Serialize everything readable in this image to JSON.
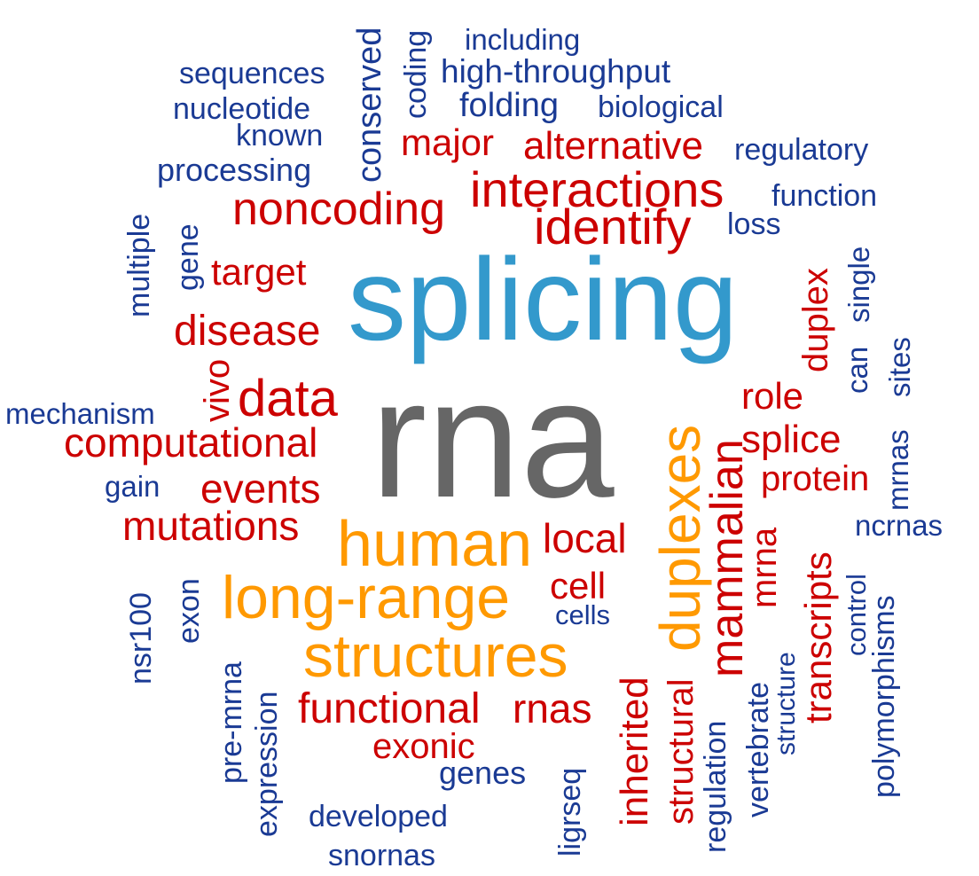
{
  "colors": {
    "gray": "#666666",
    "sky": "#3399cc",
    "orange": "#ff9900",
    "red": "#cc0000",
    "blue": "#1a3a94"
  },
  "words": [
    {
      "text": "rna",
      "color": "gray"
    },
    {
      "text": "splicing",
      "color": "sky"
    },
    {
      "text": "human",
      "color": "orange"
    },
    {
      "text": "long-range",
      "color": "orange"
    },
    {
      "text": "structures",
      "color": "orange"
    },
    {
      "text": "duplexes",
      "color": "orange"
    },
    {
      "text": "interactions",
      "color": "red"
    },
    {
      "text": "noncoding",
      "color": "red"
    },
    {
      "text": "identify",
      "color": "red"
    },
    {
      "text": "alternative",
      "color": "red"
    },
    {
      "text": "major",
      "color": "red"
    },
    {
      "text": "target",
      "color": "red"
    },
    {
      "text": "disease",
      "color": "red"
    },
    {
      "text": "data",
      "color": "red"
    },
    {
      "text": "vivo",
      "color": "red"
    },
    {
      "text": "computational",
      "color": "red"
    },
    {
      "text": "events",
      "color": "red"
    },
    {
      "text": "mutations",
      "color": "red"
    },
    {
      "text": "local",
      "color": "red"
    },
    {
      "text": "cell",
      "color": "red"
    },
    {
      "text": "functional",
      "color": "red"
    },
    {
      "text": "rnas",
      "color": "red"
    },
    {
      "text": "exonic",
      "color": "red"
    },
    {
      "text": "mammalian",
      "color": "red"
    },
    {
      "text": "role",
      "color": "red"
    },
    {
      "text": "splice",
      "color": "red"
    },
    {
      "text": "protein",
      "color": "red"
    },
    {
      "text": "duplex",
      "color": "red"
    },
    {
      "text": "mrna",
      "color": "red"
    },
    {
      "text": "transcripts",
      "color": "red"
    },
    {
      "text": "inherited",
      "color": "red"
    },
    {
      "text": "structural",
      "color": "red"
    },
    {
      "text": "including",
      "color": "blue"
    },
    {
      "text": "high-throughput",
      "color": "blue"
    },
    {
      "text": "folding",
      "color": "blue"
    },
    {
      "text": "biological",
      "color": "blue"
    },
    {
      "text": "sequences",
      "color": "blue"
    },
    {
      "text": "nucleotide",
      "color": "blue"
    },
    {
      "text": "known",
      "color": "blue"
    },
    {
      "text": "processing",
      "color": "blue"
    },
    {
      "text": "conserved",
      "color": "blue"
    },
    {
      "text": "coding",
      "color": "blue"
    },
    {
      "text": "regulatory",
      "color": "blue"
    },
    {
      "text": "function",
      "color": "blue"
    },
    {
      "text": "loss",
      "color": "blue"
    },
    {
      "text": "multiple",
      "color": "blue"
    },
    {
      "text": "gene",
      "color": "blue"
    },
    {
      "text": "mechanism",
      "color": "blue"
    },
    {
      "text": "gain",
      "color": "blue"
    },
    {
      "text": "single",
      "color": "blue"
    },
    {
      "text": "can",
      "color": "blue"
    },
    {
      "text": "sites",
      "color": "blue"
    },
    {
      "text": "mrnas",
      "color": "blue"
    },
    {
      "text": "ncrnas",
      "color": "blue"
    },
    {
      "text": "cells",
      "color": "blue"
    },
    {
      "text": "nsr100",
      "color": "blue"
    },
    {
      "text": "exon",
      "color": "blue"
    },
    {
      "text": "pre-mrna",
      "color": "blue"
    },
    {
      "text": "expression",
      "color": "blue"
    },
    {
      "text": "developed",
      "color": "blue"
    },
    {
      "text": "snornas",
      "color": "blue"
    },
    {
      "text": "genes",
      "color": "blue"
    },
    {
      "text": "ligrseq",
      "color": "blue"
    },
    {
      "text": "regulation",
      "color": "blue"
    },
    {
      "text": "vertebrate",
      "color": "blue"
    },
    {
      "text": "structure",
      "color": "blue"
    },
    {
      "text": "control",
      "color": "blue"
    },
    {
      "text": "polymorphisms",
      "color": "blue"
    }
  ]
}
